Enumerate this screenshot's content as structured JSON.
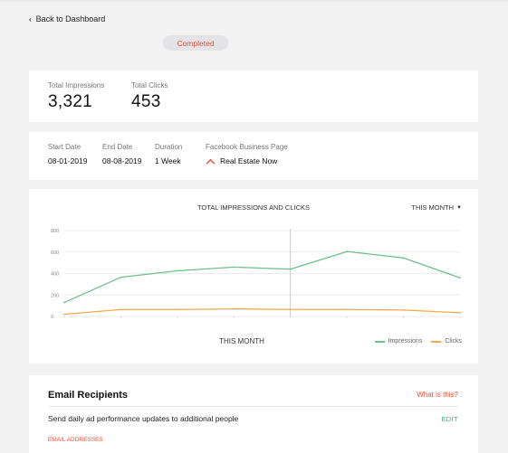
{
  "nav": {
    "back_label": "Back to Dashboard"
  },
  "status": {
    "label": "Completed",
    "color": "#e8503a"
  },
  "stats": [
    {
      "label": "Total Impressions",
      "value": "3,321"
    },
    {
      "label": "Total Clicks",
      "value": "453"
    }
  ],
  "details": [
    {
      "label": "Start Date",
      "value": "08-01-2019"
    },
    {
      "label": "End Date",
      "value": "08-08-2019"
    },
    {
      "label": "Duration",
      "value": "1 Week"
    },
    {
      "label": "Facebook Business Page",
      "value": "Real Estate Now"
    }
  ],
  "chart": {
    "range_label": "THIS MONTH"
  },
  "chart_data": {
    "type": "line",
    "title": "TOTAL IMPRESSIONS AND CLICKS",
    "xlabel": "THIS MONTH",
    "ylim": [
      0,
      800
    ],
    "yticks": [
      0,
      200,
      400,
      600,
      800
    ],
    "x": [
      1,
      2,
      3,
      4,
      5,
      6,
      7,
      8
    ],
    "series": [
      {
        "name": "Impressions",
        "color": "#6ac18b",
        "values": [
          130,
          365,
          425,
          460,
          440,
          605,
          545,
          360
        ]
      },
      {
        "name": "Clicks",
        "color": "#f5a94a",
        "values": [
          20,
          65,
          65,
          70,
          65,
          65,
          60,
          35
        ]
      }
    ],
    "grid": true,
    "legend_position": "bottom-right"
  },
  "email": {
    "title": "Email Recipients",
    "help_link": "What is this?",
    "description": "Send daily ad performance updates to additional people",
    "edit_label": "EDIT",
    "addresses_label": "EMAIL ADDRESSES"
  }
}
